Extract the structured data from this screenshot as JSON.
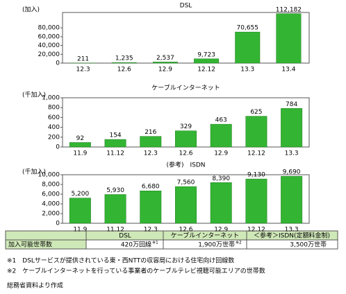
{
  "chart_data": [
    {
      "type": "bar",
      "title": "DSL",
      "y_label": "(加入)",
      "color": "#33b533",
      "categories": [
        "12.3",
        "12.6",
        "12.9",
        "12.12",
        "13.3",
        "13.4"
      ],
      "values": [
        211,
        1235,
        2537,
        9723,
        70655,
        112182
      ],
      "value_labels": [
        "211",
        "1,235",
        "2,537",
        "9,723",
        "70,655",
        "112,182"
      ],
      "ylim": [
        0,
        115000
      ],
      "yticks": [
        0,
        {
          "value": 20000,
          "label": "20,000"
        },
        {
          "value": 40000,
          "label": "40,000"
        },
        {
          "value": 60000,
          "label": "60,000"
        },
        {
          "value": 80000,
          "label": "80,000"
        }
      ],
      "grid": false
    },
    {
      "type": "bar",
      "title": "ケーブルインターネット",
      "y_label": "(千加入)",
      "color": "#33b533",
      "categories": [
        "11.9",
        "11.12",
        "12.3",
        "12.6",
        "12.9",
        "12.12",
        "13.3"
      ],
      "values": [
        92,
        154,
        216,
        329,
        463,
        625,
        784
      ],
      "ylim": [
        0,
        1000
      ],
      "yticks": [
        0,
        200,
        400,
        600,
        800,
        {
          "value": 1000,
          "label": "1,000"
        }
      ],
      "grid": false
    },
    {
      "type": "bar",
      "title": "(参考)　ISDN",
      "y_label": "(千加入)",
      "color": "#33b533",
      "categories": [
        "11.9",
        "11.12",
        "12.3",
        "12.6",
        "12.9",
        "12.12",
        "13.3"
      ],
      "values": [
        5200,
        5930,
        6680,
        7560,
        8390,
        9130,
        9690
      ],
      "value_labels": [
        "5,200",
        "5,930",
        "6,680",
        "7,560",
        "8,390",
        "9,130",
        "9,690"
      ],
      "ylim": [
        0,
        10000
      ],
      "yticks": [
        0,
        {
          "value": 2000,
          "label": "2,000"
        },
        {
          "value": 4000,
          "label": "4,000"
        },
        {
          "value": 6000,
          "label": "6,000"
        },
        {
          "value": 8000,
          "label": "8,000"
        },
        {
          "value": 10000,
          "label": "10,000"
        }
      ],
      "grid": false
    }
  ],
  "table": {
    "header": [
      "DSL",
      "ケーブルインターネット",
      "＜参考＞ISDN(定額料金制)"
    ],
    "row_label": "加入可能世帯数",
    "cells": [
      {
        "text": "420万回線",
        "note": "※1"
      },
      {
        "text": "1,900万世帯",
        "note": "※2"
      },
      {
        "text": "3,500万世帯"
      }
    ]
  },
  "notes": [
    "※1　DSLサービスが提供されている東・西NTTの収容局における住宅向け回線数",
    "※2　ケーブルインターネットを行っている事業者のケーブルテレビ視聴可能エリアの世帯数"
  ],
  "source": "総務省資料より作成"
}
